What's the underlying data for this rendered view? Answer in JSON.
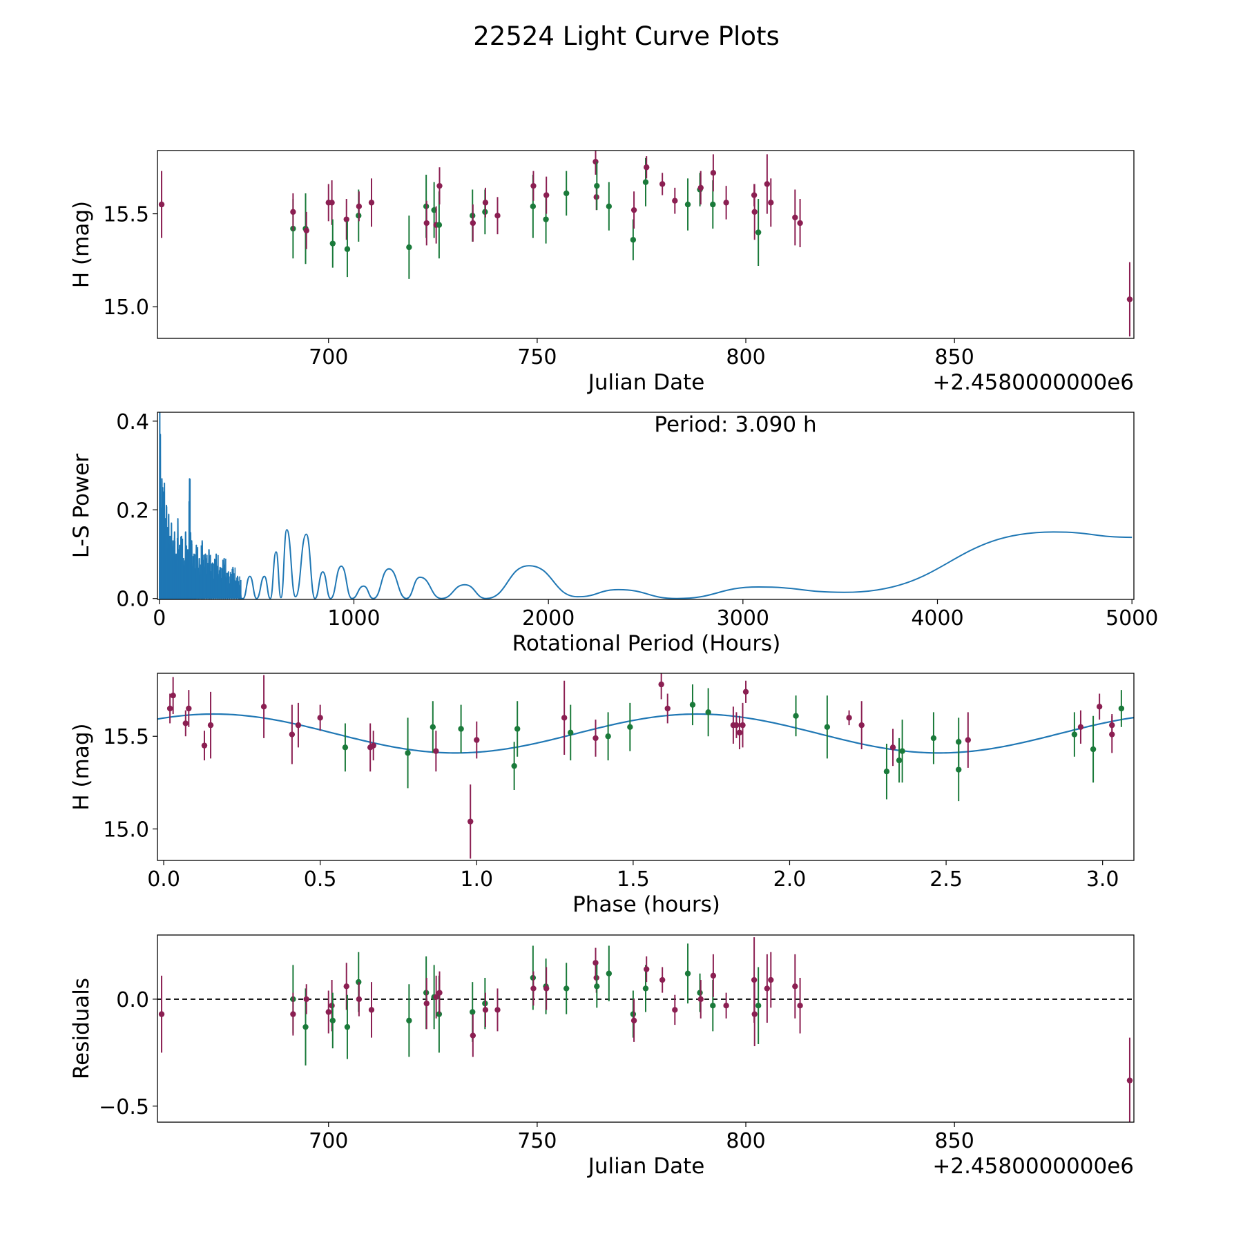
{
  "figure_title": "22524 Light Curve Plots",
  "colors": {
    "green": "#1a7a3a",
    "maroon": "#8b1f52",
    "curve": "#1f77b4"
  },
  "chart_data": [
    {
      "type": "scatter",
      "name": "light-curve",
      "xlabel": "Julian Date",
      "ylabel": "H (mag)",
      "x_offset_label": "+2.4580000000e6",
      "xlim": [
        659,
        893
      ],
      "ylim": [
        14.83,
        15.84
      ],
      "xticks": [
        700,
        750,
        800,
        850
      ],
      "yticks": [
        15.0,
        15.5
      ],
      "xtick_labels": [
        "700",
        "750",
        "800",
        "850"
      ],
      "ytick_labels": [
        "15.0",
        "15.5"
      ],
      "points": [
        [
          660.0,
          15.55,
          0.18,
          "m"
        ],
        [
          691.5,
          15.42,
          0.16,
          "g"
        ],
        [
          691.5,
          15.51,
          0.1,
          "m"
        ],
        [
          694.5,
          15.42,
          0.19,
          "g"
        ],
        [
          694.7,
          15.41,
          0.1,
          "m"
        ],
        [
          700.0,
          15.56,
          0.1,
          "m"
        ],
        [
          700.8,
          15.56,
          0.12,
          "m"
        ],
        [
          701.0,
          15.34,
          0.13,
          "g"
        ],
        [
          704.3,
          15.47,
          0.11,
          "m"
        ],
        [
          704.5,
          15.31,
          0.15,
          "g"
        ],
        [
          707.2,
          15.49,
          0.14,
          "g"
        ],
        [
          707.3,
          15.54,
          0.08,
          "m"
        ],
        [
          710.3,
          15.56,
          0.13,
          "m"
        ],
        [
          719.3,
          15.32,
          0.17,
          "g"
        ],
        [
          723.4,
          15.54,
          0.17,
          "g"
        ],
        [
          723.5,
          15.45,
          0.12,
          "m"
        ],
        [
          725.3,
          15.52,
          0.15,
          "g"
        ],
        [
          725.8,
          15.44,
          0.1,
          "m"
        ],
        [
          726.5,
          15.44,
          0.18,
          "g"
        ],
        [
          726.6,
          15.65,
          0.1,
          "m"
        ],
        [
          734.5,
          15.49,
          0.14,
          "g"
        ],
        [
          734.6,
          15.45,
          0.1,
          "m"
        ],
        [
          737.5,
          15.51,
          0.12,
          "g"
        ],
        [
          737.6,
          15.56,
          0.08,
          "m"
        ],
        [
          740.5,
          15.49,
          0.1,
          "m"
        ],
        [
          749.0,
          15.54,
          0.17,
          "g"
        ],
        [
          749.1,
          15.65,
          0.08,
          "m"
        ],
        [
          752.1,
          15.47,
          0.13,
          "g"
        ],
        [
          752.2,
          15.6,
          0.1,
          "m"
        ],
        [
          757.0,
          15.61,
          0.12,
          "g"
        ],
        [
          764.0,
          15.78,
          0.07,
          "m"
        ],
        [
          764.2,
          15.59,
          0.07,
          "m"
        ],
        [
          764.3,
          15.65,
          0.13,
          "g"
        ],
        [
          767.2,
          15.54,
          0.13,
          "g"
        ],
        [
          773.0,
          15.36,
          0.11,
          "g"
        ],
        [
          773.2,
          15.52,
          0.1,
          "m"
        ],
        [
          776.0,
          15.67,
          0.13,
          "g"
        ],
        [
          776.2,
          15.75,
          0.06,
          "m"
        ],
        [
          780.0,
          15.66,
          0.06,
          "m"
        ],
        [
          783.0,
          15.57,
          0.07,
          "m"
        ],
        [
          786.1,
          15.55,
          0.14,
          "g"
        ],
        [
          789.0,
          15.63,
          0.09,
          "g"
        ],
        [
          789.2,
          15.64,
          0.09,
          "m"
        ],
        [
          792.1,
          15.55,
          0.13,
          "g"
        ],
        [
          792.2,
          15.72,
          0.1,
          "m"
        ],
        [
          795.3,
          15.56,
          0.09,
          "m"
        ],
        [
          802.0,
          15.6,
          0.06,
          "m"
        ],
        [
          802.1,
          15.51,
          0.15,
          "m"
        ],
        [
          803.0,
          15.4,
          0.18,
          "g"
        ],
        [
          805.1,
          15.66,
          0.16,
          "m"
        ],
        [
          806.0,
          15.56,
          0.13,
          "m"
        ],
        [
          811.8,
          15.48,
          0.15,
          "m"
        ],
        [
          813.0,
          15.45,
          0.13,
          "m"
        ],
        [
          892.0,
          15.04,
          0.2,
          "m"
        ]
      ]
    },
    {
      "type": "line",
      "name": "periodogram",
      "xlabel": "Rotational Period (Hours)",
      "ylabel": "L-S Power",
      "annotation": "Period: 3.090 h",
      "xlim": [
        -10,
        5010
      ],
      "ylim": [
        -0.002,
        0.42
      ],
      "xticks": [
        0,
        1000,
        2000,
        3000,
        4000,
        5000
      ],
      "yticks": [
        0.0,
        0.2,
        0.4
      ],
      "xtick_labels": [
        "0",
        "1000",
        "2000",
        "3000",
        "4000",
        "5000"
      ],
      "ytick_labels": [
        "0.0",
        "0.2",
        "0.4"
      ],
      "dense_spikes": [
        [
          2,
          0.42
        ],
        [
          5,
          0.37
        ],
        [
          9,
          0.2
        ],
        [
          13,
          0.27
        ],
        [
          17,
          0.25
        ],
        [
          21,
          0.24
        ],
        [
          26,
          0.26
        ],
        [
          31,
          0.18
        ],
        [
          36,
          0.21
        ],
        [
          42,
          0.16
        ],
        [
          48,
          0.19
        ],
        [
          55,
          0.14
        ],
        [
          62,
          0.17
        ],
        [
          70,
          0.13
        ],
        [
          78,
          0.15
        ],
        [
          86,
          0.1
        ],
        [
          95,
          0.18
        ],
        [
          104,
          0.12
        ],
        [
          114,
          0.14
        ],
        [
          124,
          0.09
        ],
        [
          135,
          0.15
        ],
        [
          146,
          0.11
        ],
        [
          155,
          0.27
        ],
        [
          166,
          0.13
        ],
        [
          178,
          0.1
        ],
        [
          190,
          0.12
        ],
        [
          205,
          0.09
        ],
        [
          220,
          0.13
        ],
        [
          237,
          0.1
        ],
        [
          255,
          0.11
        ],
        [
          273,
          0.08
        ],
        [
          292,
          0.1
        ],
        [
          312,
          0.07
        ],
        [
          333,
          0.09
        ],
        [
          355,
          0.06
        ],
        [
          378,
          0.07
        ],
        [
          402,
          0.05
        ]
      ],
      "smooth_peaks": [
        [
          465,
          0.05
        ],
        [
          540,
          0.05
        ],
        [
          600,
          0.105
        ],
        [
          655,
          0.155
        ],
        [
          755,
          0.145
        ],
        [
          840,
          0.06
        ],
        [
          935,
          0.073
        ],
        [
          1050,
          0.028
        ],
        [
          1180,
          0.067
        ],
        [
          1340,
          0.048
        ],
        [
          1570,
          0.031
        ],
        [
          1900,
          0.074
        ],
        [
          2360,
          0.02
        ],
        [
          3080,
          0.026
        ],
        [
          4600,
          0.15
        ],
        [
          5000,
          0.138
        ]
      ],
      "smooth_troughs": [
        [
          430,
          0.0
        ],
        [
          500,
          0.0
        ],
        [
          570,
          0.0
        ],
        [
          625,
          0.002
        ],
        [
          700,
          0.004
        ],
        [
          800,
          0.0
        ],
        [
          880,
          0.0
        ],
        [
          990,
          0.0
        ],
        [
          1100,
          0.0
        ],
        [
          1270,
          0.0
        ],
        [
          1450,
          0.0
        ],
        [
          1680,
          0.0
        ],
        [
          2150,
          0.004
        ],
        [
          2660,
          0.0
        ],
        [
          3520,
          0.014
        ]
      ]
    },
    {
      "type": "scatter",
      "name": "phase-folded",
      "xlabel": "Phase (hours)",
      "ylabel": "H (mag)",
      "xlim": [
        -0.02,
        3.1
      ],
      "ylim": [
        14.83,
        15.84
      ],
      "xticks": [
        0.0,
        0.5,
        1.0,
        1.5,
        2.0,
        2.5,
        3.0
      ],
      "yticks": [
        15.0,
        15.5
      ],
      "xtick_labels": [
        "0.0",
        "0.5",
        "1.0",
        "1.5",
        "2.0",
        "2.5",
        "3.0"
      ],
      "ytick_labels": [
        "15.0",
        "15.5"
      ],
      "fit_curve": {
        "mean": 15.515,
        "amplitude": 0.105,
        "period": 1.545,
        "phase_of_max": 0.16
      },
      "points": [
        [
          0.02,
          15.65,
          0.08,
          "m"
        ],
        [
          0.03,
          15.72,
          0.1,
          "m"
        ],
        [
          0.07,
          15.57,
          0.07,
          "m"
        ],
        [
          0.08,
          15.65,
          0.1,
          "m"
        ],
        [
          0.13,
          15.45,
          0.08,
          "m"
        ],
        [
          0.15,
          15.56,
          0.18,
          "m"
        ],
        [
          0.32,
          15.66,
          0.17,
          "m"
        ],
        [
          0.41,
          15.51,
          0.16,
          "m"
        ],
        [
          0.43,
          15.56,
          0.12,
          "m"
        ],
        [
          0.5,
          15.6,
          0.07,
          "m"
        ],
        [
          0.58,
          15.44,
          0.13,
          "g"
        ],
        [
          0.66,
          15.44,
          0.13,
          "m"
        ],
        [
          0.67,
          15.45,
          0.08,
          "m"
        ],
        [
          0.78,
          15.41,
          0.19,
          "g"
        ],
        [
          0.86,
          15.55,
          0.14,
          "g"
        ],
        [
          0.87,
          15.42,
          0.11,
          "m"
        ],
        [
          0.95,
          15.54,
          0.13,
          "g"
        ],
        [
          0.98,
          15.04,
          0.2,
          "m"
        ],
        [
          1.0,
          15.48,
          0.1,
          "m"
        ],
        [
          1.12,
          15.34,
          0.13,
          "g"
        ],
        [
          1.13,
          15.54,
          0.15,
          "g"
        ],
        [
          1.28,
          15.6,
          0.2,
          "m"
        ],
        [
          1.3,
          15.52,
          0.15,
          "g"
        ],
        [
          1.38,
          15.49,
          0.1,
          "m"
        ],
        [
          1.42,
          15.5,
          0.13,
          "g"
        ],
        [
          1.49,
          15.55,
          0.13,
          "g"
        ],
        [
          1.59,
          15.78,
          0.08,
          "m"
        ],
        [
          1.61,
          15.65,
          0.08,
          "m"
        ],
        [
          1.69,
          15.67,
          0.11,
          "g"
        ],
        [
          1.74,
          15.63,
          0.13,
          "g"
        ],
        [
          1.82,
          15.56,
          0.1,
          "m"
        ],
        [
          1.83,
          15.56,
          0.07,
          "m"
        ],
        [
          1.84,
          15.52,
          0.09,
          "m"
        ],
        [
          1.85,
          15.56,
          0.12,
          "m"
        ],
        [
          1.86,
          15.74,
          0.06,
          "m"
        ],
        [
          2.02,
          15.61,
          0.11,
          "g"
        ],
        [
          2.12,
          15.55,
          0.17,
          "g"
        ],
        [
          2.19,
          15.6,
          0.04,
          "m"
        ],
        [
          2.23,
          15.56,
          0.13,
          "m"
        ],
        [
          2.31,
          15.31,
          0.15,
          "g"
        ],
        [
          2.33,
          15.44,
          0.1,
          "m"
        ],
        [
          2.35,
          15.37,
          0.12,
          "g"
        ],
        [
          2.36,
          15.42,
          0.17,
          "g"
        ],
        [
          2.46,
          15.49,
          0.14,
          "g"
        ],
        [
          2.54,
          15.32,
          0.17,
          "g"
        ],
        [
          2.54,
          15.47,
          0.13,
          "g"
        ],
        [
          2.57,
          15.48,
          0.15,
          "m"
        ],
        [
          2.91,
          15.51,
          0.12,
          "g"
        ],
        [
          2.93,
          15.55,
          0.09,
          "m"
        ],
        [
          2.97,
          15.43,
          0.18,
          "g"
        ],
        [
          2.99,
          15.66,
          0.07,
          "m"
        ],
        [
          3.03,
          15.56,
          0.06,
          "m"
        ],
        [
          3.03,
          15.51,
          0.1,
          "m"
        ],
        [
          3.06,
          15.65,
          0.1,
          "g"
        ]
      ]
    },
    {
      "type": "scatter",
      "name": "residuals",
      "xlabel": "Julian Date",
      "ylabel": "Residuals",
      "x_offset_label": "+2.4580000000e6",
      "xlim": [
        659,
        893
      ],
      "ylim": [
        -0.575,
        0.3
      ],
      "xticks": [
        700,
        750,
        800,
        850
      ],
      "yticks": [
        -0.5,
        0.0
      ],
      "xtick_labels": [
        "700",
        "750",
        "800",
        "850"
      ],
      "ytick_labels": [
        "−0.5",
        "0.0"
      ],
      "zero_line": 0.0,
      "points": [
        [
          660.0,
          -0.07,
          0.18,
          "m"
        ],
        [
          691.5,
          -0.0,
          0.16,
          "g"
        ],
        [
          691.5,
          -0.07,
          0.1,
          "m"
        ],
        [
          694.5,
          -0.13,
          0.18,
          "g"
        ],
        [
          694.7,
          0.0,
          0.07,
          "m"
        ],
        [
          700.0,
          -0.06,
          0.1,
          "m"
        ],
        [
          700.8,
          -0.03,
          0.12,
          "m"
        ],
        [
          701.0,
          -0.1,
          0.13,
          "g"
        ],
        [
          704.3,
          0.06,
          0.11,
          "m"
        ],
        [
          704.5,
          -0.13,
          0.15,
          "g"
        ],
        [
          707.2,
          0.08,
          0.14,
          "g"
        ],
        [
          707.3,
          -0.0,
          0.08,
          "m"
        ],
        [
          710.3,
          -0.05,
          0.13,
          "m"
        ],
        [
          719.3,
          -0.1,
          0.17,
          "g"
        ],
        [
          723.4,
          0.03,
          0.17,
          "g"
        ],
        [
          723.5,
          -0.02,
          0.12,
          "m"
        ],
        [
          725.3,
          0.01,
          0.15,
          "g"
        ],
        [
          725.8,
          0.01,
          0.1,
          "m"
        ],
        [
          726.5,
          -0.07,
          0.18,
          "g"
        ],
        [
          726.6,
          0.03,
          0.1,
          "m"
        ],
        [
          734.5,
          -0.06,
          0.14,
          "g"
        ],
        [
          734.6,
          -0.17,
          0.1,
          "m"
        ],
        [
          737.5,
          -0.02,
          0.12,
          "g"
        ],
        [
          737.6,
          -0.05,
          0.08,
          "m"
        ],
        [
          740.5,
          -0.05,
          0.1,
          "m"
        ],
        [
          749.0,
          0.1,
          0.15,
          "g"
        ],
        [
          749.1,
          0.05,
          0.08,
          "m"
        ],
        [
          752.1,
          0.06,
          0.13,
          "g"
        ],
        [
          752.2,
          0.05,
          0.1,
          "m"
        ],
        [
          757.0,
          0.05,
          0.12,
          "g"
        ],
        [
          764.0,
          0.17,
          0.07,
          "m"
        ],
        [
          764.2,
          0.1,
          0.07,
          "m"
        ],
        [
          764.3,
          0.06,
          0.1,
          "g"
        ],
        [
          767.2,
          0.12,
          0.13,
          "g"
        ],
        [
          773.0,
          -0.07,
          0.11,
          "g"
        ],
        [
          773.2,
          -0.1,
          0.1,
          "m"
        ],
        [
          776.0,
          0.05,
          0.11,
          "g"
        ],
        [
          776.2,
          0.14,
          0.06,
          "m"
        ],
        [
          780.0,
          0.09,
          0.06,
          "m"
        ],
        [
          783.0,
          -0.05,
          0.07,
          "m"
        ],
        [
          786.1,
          0.12,
          0.14,
          "g"
        ],
        [
          789.0,
          0.03,
          0.09,
          "g"
        ],
        [
          789.2,
          -0.0,
          0.09,
          "m"
        ],
        [
          792.1,
          -0.03,
          0.12,
          "g"
        ],
        [
          792.2,
          0.11,
          0.1,
          "m"
        ],
        [
          795.3,
          -0.03,
          0.06,
          "m"
        ],
        [
          802.0,
          0.09,
          0.2,
          "m"
        ],
        [
          802.1,
          -0.07,
          0.15,
          "m"
        ],
        [
          803.0,
          -0.03,
          0.18,
          "g"
        ],
        [
          805.1,
          0.05,
          0.16,
          "m"
        ],
        [
          806.0,
          0.09,
          0.13,
          "m"
        ],
        [
          811.8,
          0.06,
          0.15,
          "m"
        ],
        [
          813.0,
          -0.03,
          0.13,
          "m"
        ],
        [
          892.0,
          -0.38,
          0.2,
          "m"
        ]
      ]
    }
  ]
}
